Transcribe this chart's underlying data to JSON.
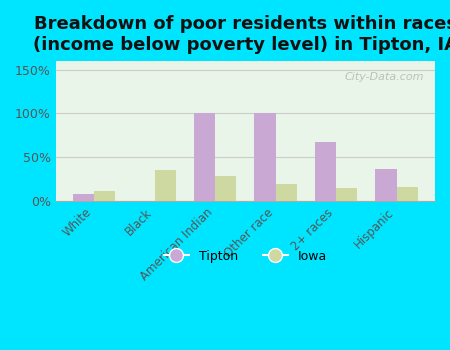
{
  "title": "Breakdown of poor residents within races\n(income below poverty level) in Tipton, IA",
  "categories": [
    "White",
    "Black",
    "American Indian",
    "Other race",
    "2+ races",
    "Hispanic"
  ],
  "tipton_values": [
    8,
    0,
    100,
    100,
    68,
    37
  ],
  "iowa_values": [
    12,
    35,
    29,
    19,
    15,
    16
  ],
  "tipton_color": "#c9a8d4",
  "iowa_color": "#cdd9a0",
  "background_color": "#e8f5e8",
  "outer_background": "#00e5ff",
  "ylim": [
    0,
    160
  ],
  "yticks": [
    0,
    50,
    100,
    150
  ],
  "ytick_labels": [
    "0%",
    "50%",
    "100%",
    "150%"
  ],
  "title_fontsize": 13,
  "watermark": "City-Data.com"
}
